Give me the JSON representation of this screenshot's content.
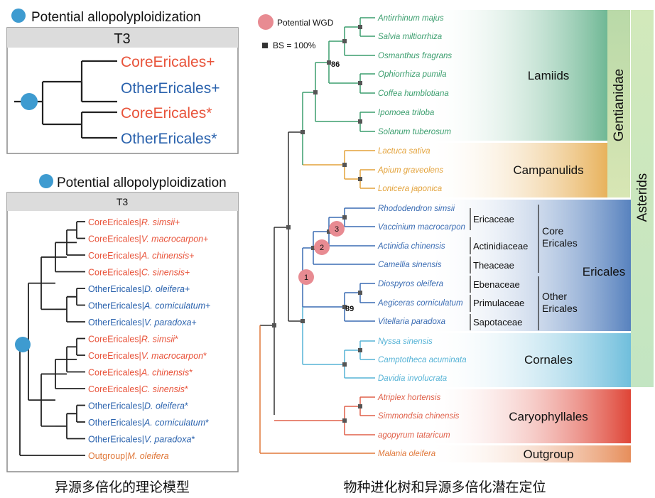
{
  "colors": {
    "core": "#e8533a",
    "other": "#2a62ad",
    "black": "#111111",
    "lamiids": "#3b9e6e",
    "campanulids": "#e3a23a",
    "ericales": "#3a6cb3",
    "cornales": "#56b3d6",
    "caryophyllales": "#e0614a",
    "outgroup": "#e0783a",
    "allo_dot": "#3e9bd0",
    "wgd": "#e88b92"
  },
  "topleft": {
    "legend": "Potential allopolyploidization",
    "title": "T3",
    "labels": [
      "CoreEricales+",
      "OtherEricales+",
      "CoreEricales*",
      "OtherEricales*"
    ]
  },
  "bottomleft": {
    "legend": "Potential allopolyploidization",
    "title": "T3",
    "leaves": [
      {
        "group": "CoreEricales|",
        "species": "R. simsii",
        "suffix": "+",
        "clade": "core"
      },
      {
        "group": "CoreEricales|",
        "species": "V. macrocarpon",
        "suffix": "+",
        "clade": "core"
      },
      {
        "group": "CoreEricales|",
        "species": "A. chinensis",
        "suffix": "+",
        "clade": "core"
      },
      {
        "group": "CoreEricales|",
        "species": "C. sinensis",
        "suffix": "+",
        "clade": "core"
      },
      {
        "group": "OtherEricales|",
        "species": "D. oleifera",
        "suffix": "+",
        "clade": "other"
      },
      {
        "group": "OtherEricales|",
        "species": "A. corniculatum",
        "suffix": "+",
        "clade": "other"
      },
      {
        "group": "OtherEricales|",
        "species": "V. paradoxa",
        "suffix": "+",
        "clade": "other"
      },
      {
        "group": "CoreEricales|",
        "species": "R. simsii",
        "suffix": "*",
        "clade": "core"
      },
      {
        "group": "CoreEricales|",
        "species": "V. macrocarpon",
        "suffix": "*",
        "clade": "core"
      },
      {
        "group": "CoreEricales|",
        "species": "A. chinensis",
        "suffix": "*",
        "clade": "core"
      },
      {
        "group": "CoreEricales|",
        "species": "C. sinensis",
        "suffix": "*",
        "clade": "core"
      },
      {
        "group": "OtherEricales|",
        "species": "D. oleifera",
        "suffix": "*",
        "clade": "other"
      },
      {
        "group": "OtherEricales|",
        "species": "A. corniculatum",
        "suffix": "*",
        "clade": "other"
      },
      {
        "group": "OtherEricales|",
        "species": "V. paradoxa",
        "suffix": "*",
        "clade": "other"
      },
      {
        "group": "Outgroup|",
        "species": "M. oleifera",
        "suffix": "",
        "clade": "outgroup"
      }
    ],
    "caption": "异源多倍化的理论模型"
  },
  "right": {
    "legend_wgd": "Potential WGD",
    "legend_bs": "BS = 100%",
    "species": [
      {
        "name": "Antirrhinum majus",
        "clade": "lamiids"
      },
      {
        "name": "Salvia miltiorrhiza",
        "clade": "lamiids"
      },
      {
        "name": "Osmanthus fragrans",
        "clade": "lamiids"
      },
      {
        "name": "Ophiorrhiza pumila",
        "clade": "lamiids"
      },
      {
        "name": "Coffea humblotiana",
        "clade": "lamiids"
      },
      {
        "name": "Ipomoea triloba",
        "clade": "lamiids"
      },
      {
        "name": "Solanum tuberosum",
        "clade": "lamiids"
      },
      {
        "name": "Lactuca sativa",
        "clade": "campanulids"
      },
      {
        "name": "Apium graveolens",
        "clade": "campanulids"
      },
      {
        "name": "Lonicera japonica",
        "clade": "campanulids"
      },
      {
        "name": "Rhododendron simsii",
        "clade": "ericales"
      },
      {
        "name": "Vaccinium macrocarpon",
        "clade": "ericales"
      },
      {
        "name": "Actinidia chinensis",
        "clade": "ericales"
      },
      {
        "name": "Camellia sinensis",
        "clade": "ericales"
      },
      {
        "name": "Diospyros oleifera",
        "clade": "ericales"
      },
      {
        "name": "Aegiceras corniculatum",
        "clade": "ericales"
      },
      {
        "name": "Vitellaria paradoxa",
        "clade": "ericales"
      },
      {
        "name": "Nyssa sinensis",
        "clade": "cornales"
      },
      {
        "name": "Camptotheca acuminata",
        "clade": "cornales"
      },
      {
        "name": "Davidia involucrata",
        "clade": "cornales"
      },
      {
        "name": "Atriplex hortensis",
        "clade": "caryophyllales"
      },
      {
        "name": "Simmondsia chinensis",
        "clade": "caryophyllales"
      },
      {
        "name": "agopyrum tataricum",
        "clade": "caryophyllales"
      },
      {
        "name": "Malania oleifera",
        "clade": "outgroup"
      }
    ],
    "bootstrap": [
      "86",
      "89"
    ],
    "wgd_nodes": [
      "1",
      "2",
      "3"
    ],
    "families": [
      "Ericaceae",
      "Actinidiaceae",
      "Theaceae",
      "Ebenaceae",
      "Primulaceae",
      "Sapotaceae"
    ],
    "groups": {
      "core": "Core\nEricales",
      "other": "Other\nEricales"
    },
    "clades": [
      "Lamiids",
      "Campanulids",
      "Ericales",
      "Cornales",
      "Caryophyllales",
      "Outgroup"
    ],
    "vertical": [
      "Gentianidae",
      "Asterids"
    ],
    "caption": "物种进化树和异源多倍化潜在定位"
  }
}
